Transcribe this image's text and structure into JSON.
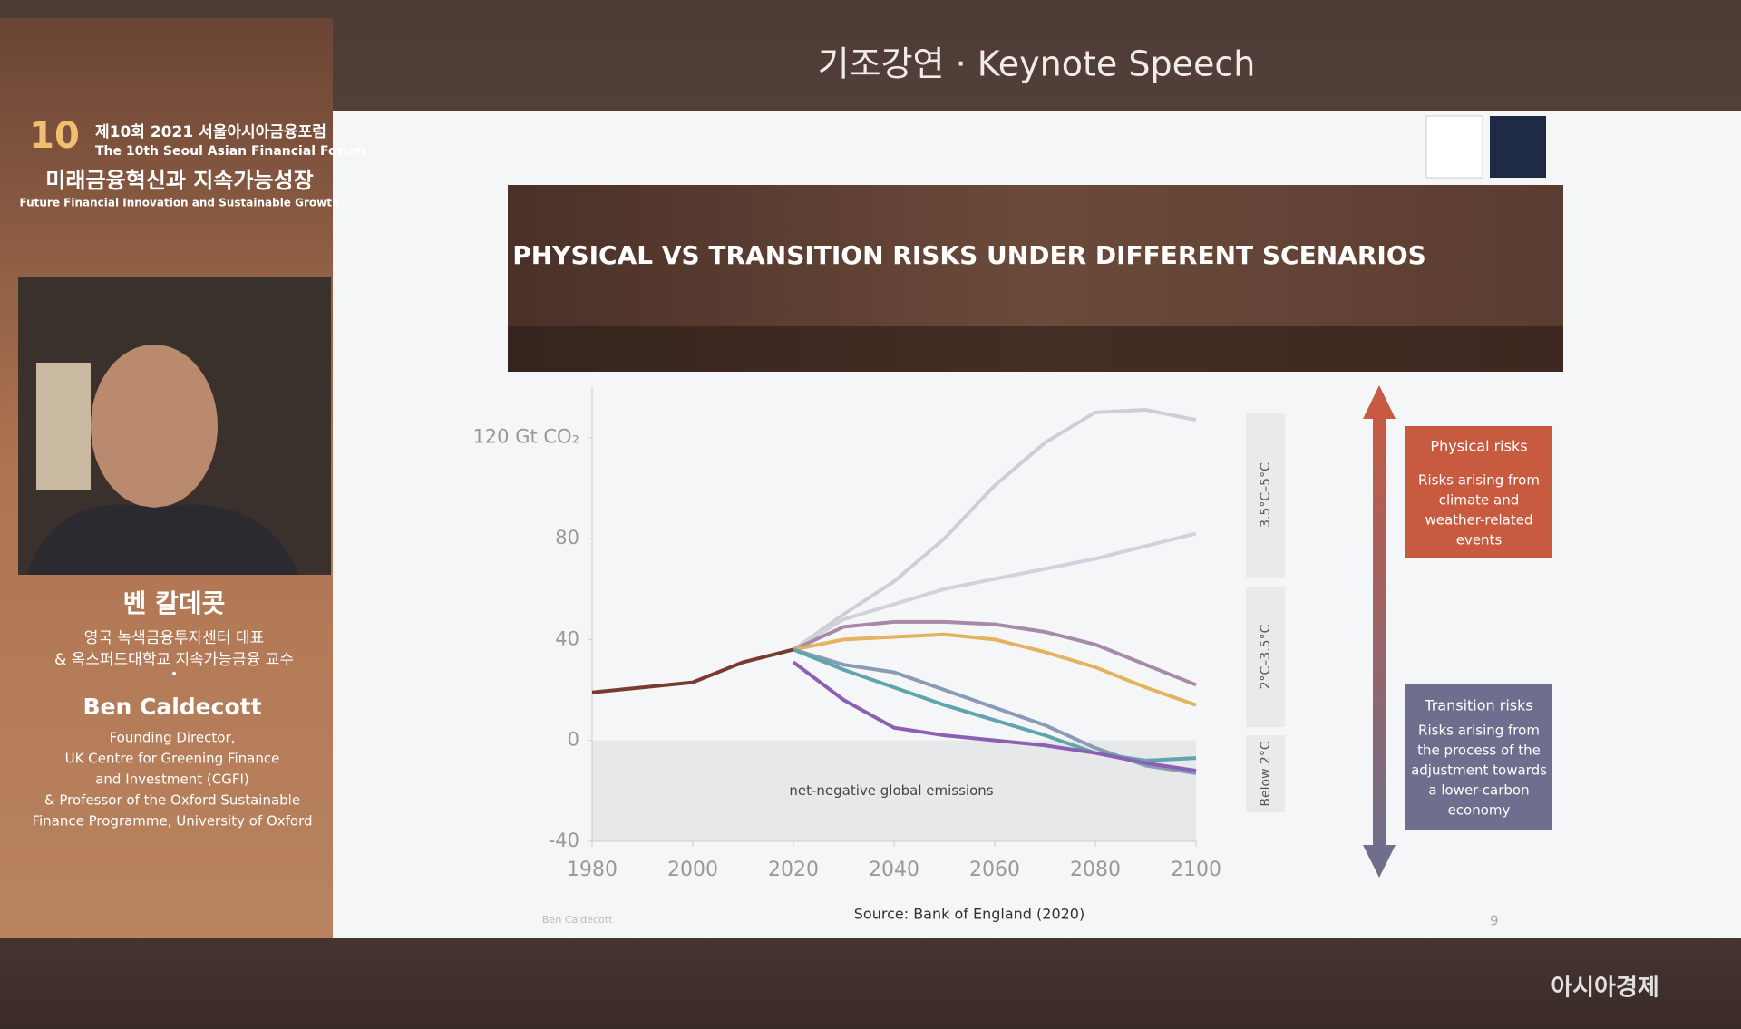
{
  "header": {
    "title": "기조강연 · Keynote Speech"
  },
  "forum": {
    "logo": "10",
    "edition": "제10회 2021 서울아시아금융포럼",
    "edition_en": "The 10th Seoul Asian Financial Forum",
    "theme": "미래금융혁신과 지속가능성장",
    "theme_en": "Future Financial Innovation and Sustainable Growth"
  },
  "speaker": {
    "name_ko": "벤 칼데콧",
    "title_ko": [
      "영국 녹색금융투자센터 대표",
      "& 옥스퍼드대학교 지속가능금융 교수"
    ],
    "separator": "•",
    "name": "Ben Caldecott",
    "title": [
      "Founding Director,",
      "UK Centre for Greening Finance",
      "and Investment (CGFI)",
      "& Professor of the Oxford Sustainable",
      "Finance Programme, University of Oxford"
    ]
  },
  "slide": {
    "title": "PHYSICAL VS TRANSITION RISKS UNDER DIFFERENT SCENARIOS",
    "band_labels": [
      "3.5°C–5°C",
      "2°C–3.5°C",
      "Below 2°C"
    ],
    "physical": {
      "title": "Physical risks",
      "text": [
        "Risks arising from",
        "climate and",
        "weather-related",
        "events"
      ]
    },
    "transition": {
      "title": "Transition risks",
      "text": [
        "Risks arising from",
        "the process of the",
        "adjustment towards",
        "a lower-carbon",
        "economy"
      ]
    },
    "source": "Source: Bank of England (2020)",
    "author": "Ben Caldecott",
    "page": 9
  },
  "chart_data": {
    "type": "line",
    "annotation": "net-negative global emissions",
    "x": [
      1980,
      1990,
      2000,
      2010,
      2020,
      2030,
      2040,
      2050,
      2060,
      2070,
      2080,
      2090,
      2100
    ],
    "series": [
      {
        "color": "#cfcfd3",
        "values": [
          null,
          null,
          null,
          null,
          36,
          50,
          63,
          80,
          101,
          118,
          130,
          131,
          127
        ]
      },
      {
        "color": "#d4d0dc",
        "values": [
          null,
          null,
          null,
          null,
          36,
          48,
          54,
          60,
          64,
          68,
          72,
          77,
          82
        ]
      },
      {
        "color": "#a78aa8",
        "values": [
          null,
          null,
          null,
          null,
          36,
          45,
          47,
          47,
          46,
          43,
          38,
          30,
          22
        ]
      },
      {
        "color": "#e3b45f",
        "values": [
          null,
          null,
          null,
          null,
          36,
          40,
          41,
          42,
          40,
          35,
          29,
          21,
          14
        ]
      },
      {
        "color": "#8a9bb8",
        "values": [
          null,
          null,
          null,
          null,
          36,
          30,
          27,
          20,
          13,
          6,
          -3,
          -10,
          -13
        ]
      },
      {
        "color": "#5fa5ae",
        "values": [
          null,
          null,
          null,
          null,
          36,
          28,
          21,
          14,
          8,
          2,
          -5,
          -8,
          -7
        ]
      },
      {
        "color": "#8c5fb4",
        "values": [
          null,
          null,
          null,
          null,
          31,
          16,
          5,
          2,
          0,
          -2,
          -5,
          -9,
          -12
        ]
      },
      {
        "color": "#7a3a2e",
        "values": [
          19,
          21,
          23,
          31,
          36,
          null,
          null,
          null,
          null,
          null,
          null,
          null,
          null
        ]
      }
    ],
    "xlim": [
      1980,
      2100
    ],
    "xticks": [
      1980,
      2000,
      2020,
      2040,
      2060,
      2080,
      2100
    ],
    "ylim": [
      -40,
      140
    ],
    "yticks": [
      {
        "value": 120,
        "label": "120 Gt CO₂"
      },
      80,
      40,
      0,
      -40
    ]
  },
  "watermark": "아시아경제"
}
